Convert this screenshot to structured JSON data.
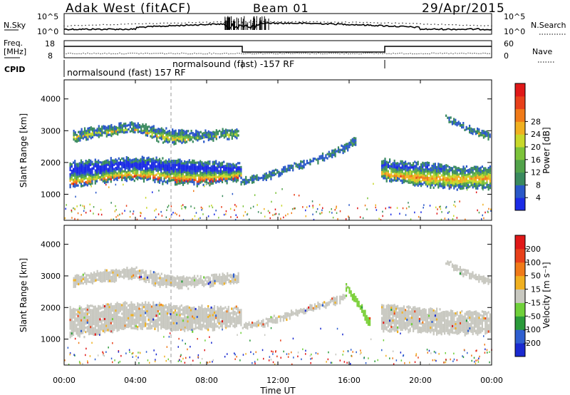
{
  "header": {
    "station": "Adak West (fitACF)",
    "beam": "Beam 01",
    "date": "29/Apr/2015"
  },
  "strips": {
    "nsky_label": "N.Sky",
    "nsky_ticks": [
      "10^5",
      "10^0"
    ],
    "nsearch_label": "N.Search",
    "nsearch_ticks": [
      "10^5",
      "10^0"
    ],
    "freq_label_line1": "Freq.",
    "freq_label_line2": "[MHz]",
    "freq_ticks": [
      "18",
      "8"
    ],
    "nave_label": "Nave",
    "nave_ticks": [
      "60",
      "0"
    ],
    "cpid_label": "CPID",
    "cpid_segments": [
      {
        "label": "normalsound (fast) 157 RF",
        "start_hour": 0,
        "end_hour": 10
      },
      {
        "label": "normalsound (fast) -157 RF",
        "start_hour": 10,
        "end_hour": 18
      }
    ]
  },
  "chart_data": [
    {
      "type": "heatmap",
      "name": "Power",
      "ylabel": "Slant Range [km]",
      "ylim": [
        180,
        4600
      ],
      "yticks": [
        1000,
        2000,
        3000,
        4000
      ],
      "xlim": [
        0,
        24
      ],
      "colorbar": {
        "label": "Power [dB]",
        "ticks": [
          "4",
          "8",
          "12",
          "16",
          "20",
          "24",
          "28"
        ],
        "colors": [
          "#1b2be6",
          "#2a58c8",
          "#3a8a5e",
          "#52a34a",
          "#7cc33a",
          "#c8d82a",
          "#f0b020",
          "#f07a18",
          "#e8401a",
          "#e01818"
        ]
      },
      "bands": [
        {
          "t0": 0.3,
          "t1": 9.9,
          "lower": [
            1280,
            1330,
            1450,
            1500,
            1430,
            1360,
            1340,
            1400,
            1480
          ],
          "upper": [
            2030,
            2060,
            2120,
            2160,
            2140,
            2080,
            2040,
            2020,
            2000
          ],
          "peak": [
            1320,
            1360,
            1500,
            1560,
            1500,
            1440,
            1430,
            1460,
            1540
          ],
          "peak_db": 28
        },
        {
          "t0": 0.5,
          "t1": 9.8,
          "lower": [
            2700,
            2820,
            2900,
            2980,
            2720,
            2640,
            2700,
            2760,
            2800
          ],
          "upper": [
            3000,
            3120,
            3200,
            3260,
            3100,
            3000,
            2980,
            3040,
            3080
          ],
          "peak": [
            2800,
            2920,
            3000,
            3050,
            2860,
            2760,
            2760,
            2840,
            2900
          ],
          "peak_db": 20
        },
        {
          "t0": 9.9,
          "t1": 16.4,
          "lower": [
            1350,
            1450,
            1650,
            1850,
            2050,
            2300,
            2600
          ],
          "upper": [
            1500,
            1600,
            1800,
            2000,
            2200,
            2450,
            2800
          ],
          "peak": [
            1420,
            1520,
            1720,
            1920,
            2120,
            2370,
            2700
          ],
          "peak_db": 8
        },
        {
          "t0": 17.8,
          "t1": 23.9,
          "lower": [
            1500,
            1400,
            1300,
            1250,
            1200,
            1220,
            1230
          ],
          "upper": [
            2100,
            2050,
            2000,
            1950,
            1880,
            1850,
            1850
          ],
          "peak": [
            1650,
            1600,
            1550,
            1520,
            1500,
            1520,
            1540
          ],
          "peak_db": 22
        },
        {
          "t0": 21.4,
          "t1": 23.9,
          "lower": [
            3400,
            3100,
            2900,
            2750
          ],
          "upper": [
            3500,
            3250,
            3050,
            2950
          ],
          "peak": [
            3450,
            3170,
            2970,
            2850
          ],
          "peak_db": 16
        }
      ]
    },
    {
      "type": "heatmap",
      "name": "Velocity",
      "ylabel": "Slant Range [km]",
      "ylim": [
        180,
        4600
      ],
      "yticks": [
        1000,
        2000,
        3000,
        4000
      ],
      "xlim": [
        0,
        24
      ],
      "xticks": [
        "00:00",
        "04:00",
        "08:00",
        "12:00",
        "16:00",
        "20:00",
        "00:00"
      ],
      "xlabel": "Time UT",
      "colorbar": {
        "label": "Velocity [m s⁻¹]",
        "ticks": [
          "200",
          "100",
          "50",
          "15",
          "-15",
          "-50",
          "-100",
          "-200"
        ],
        "colors": [
          "#1a2ad0",
          "#2f5fd0",
          "#2a9a3a",
          "#6fd03a",
          "#c8c8c0",
          "#f0b020",
          "#f07a18",
          "#e8401a",
          "#e01818"
        ]
      },
      "bands": [
        {
          "t0": 0.3,
          "t1": 9.9,
          "lower": [
            1100,
            1180,
            1300,
            1380,
            1350,
            1300,
            1320,
            1380,
            1450
          ],
          "upper": [
            2000,
            2050,
            2120,
            2160,
            2140,
            2080,
            2040,
            2020,
            2000
          ],
          "color": "gray"
        },
        {
          "t0": 0.5,
          "t1": 9.8,
          "lower": [
            2700,
            2820,
            2900,
            2980,
            2720,
            2640,
            2700,
            2760,
            2800
          ],
          "upper": [
            3000,
            3120,
            3200,
            3260,
            3100,
            3000,
            2980,
            3040,
            3080
          ],
          "color": "gray"
        },
        {
          "t0": 9.9,
          "t1": 15.8,
          "lower": [
            1350,
            1450,
            1650,
            1850,
            2050,
            2300
          ],
          "upper": [
            1500,
            1600,
            1800,
            2000,
            2200,
            2450
          ],
          "color": "gray"
        },
        {
          "t0": 15.8,
          "t1": 17.2,
          "lower": [
            2600,
            2200,
            1800,
            1300
          ],
          "upper": [
            2800,
            2400,
            2000,
            1600
          ],
          "color": "green"
        },
        {
          "t0": 17.8,
          "t1": 23.9,
          "lower": [
            1300,
            1300,
            1250,
            1200,
            1180,
            1200,
            1210
          ],
          "upper": [
            2100,
            2050,
            2000,
            1950,
            1880,
            1850,
            1850
          ],
          "color": "gray"
        },
        {
          "t0": 21.4,
          "t1": 23.9,
          "lower": [
            3400,
            3100,
            2900,
            2750
          ],
          "upper": [
            3500,
            3250,
            3050,
            2950
          ],
          "color": "gray"
        }
      ]
    }
  ]
}
